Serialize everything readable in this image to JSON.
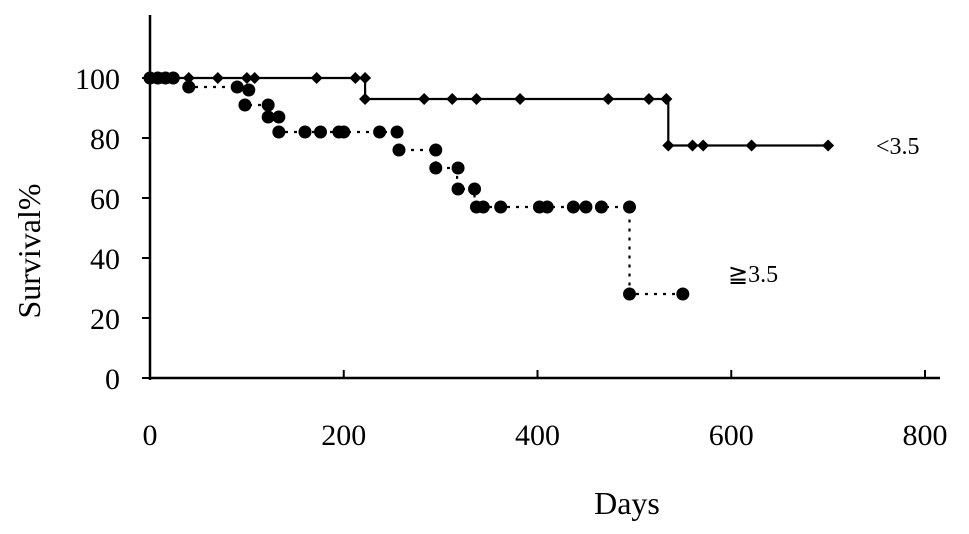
{
  "chart_data": {
    "type": "line",
    "title": "",
    "xlabel": "Days",
    "ylabel": "Survival%",
    "xlim": [
      0,
      800
    ],
    "ylim": [
      0,
      100
    ],
    "x_ticks": [
      0,
      200,
      400,
      600,
      800
    ],
    "y_ticks": [
      0,
      20,
      40,
      60,
      80,
      100
    ],
    "grid": false,
    "series": [
      {
        "name": "<3.5",
        "line_style": "solid",
        "marker": "diamond",
        "color": "#000000",
        "steps": [
          [
            0,
            100
          ],
          [
            222,
            100
          ],
          [
            222,
            93
          ],
          [
            535,
            93
          ],
          [
            535,
            77.5
          ],
          [
            700,
            77.5
          ]
        ],
        "markers": [
          [
            0,
            100
          ],
          [
            6,
            100
          ],
          [
            12,
            100
          ],
          [
            18,
            100
          ],
          [
            25,
            100
          ],
          [
            40,
            100
          ],
          [
            70,
            100
          ],
          [
            100,
            100
          ],
          [
            108,
            100
          ],
          [
            172,
            100
          ],
          [
            212,
            100
          ],
          [
            222,
            100
          ],
          [
            222,
            93
          ],
          [
            283,
            93
          ],
          [
            312,
            93
          ],
          [
            337,
            93
          ],
          [
            382,
            93
          ],
          [
            473,
            93
          ],
          [
            515,
            93
          ],
          [
            533,
            93
          ],
          [
            535,
            77.5
          ],
          [
            560,
            77.5
          ],
          [
            571,
            77.5
          ],
          [
            621,
            77.5
          ],
          [
            700,
            77.5
          ]
        ]
      },
      {
        "name": "≧3.5",
        "line_style": "dotted",
        "marker": "circle",
        "color": "#000000",
        "steps": [
          [
            0,
            100
          ],
          [
            40,
            100
          ],
          [
            40,
            97
          ],
          [
            95,
            97
          ],
          [
            95,
            96
          ],
          [
            98,
            96
          ],
          [
            98,
            91
          ],
          [
            122,
            91
          ],
          [
            122,
            87
          ],
          [
            135,
            87
          ],
          [
            135,
            82
          ],
          [
            257,
            82
          ],
          [
            257,
            76
          ],
          [
            295,
            76
          ],
          [
            295,
            70
          ],
          [
            317,
            70
          ],
          [
            317,
            63
          ],
          [
            335,
            63
          ],
          [
            335,
            57
          ],
          [
            495,
            57
          ],
          [
            495,
            28
          ],
          [
            550,
            28
          ]
        ],
        "markers": [
          [
            0,
            100
          ],
          [
            8,
            100
          ],
          [
            16,
            100
          ],
          [
            24,
            100
          ],
          [
            40,
            97
          ],
          [
            90,
            97
          ],
          [
            102,
            96
          ],
          [
            98,
            91
          ],
          [
            122,
            91
          ],
          [
            122,
            87
          ],
          [
            133,
            87
          ],
          [
            133,
            82
          ],
          [
            160,
            82
          ],
          [
            176,
            82
          ],
          [
            195,
            82
          ],
          [
            200,
            82
          ],
          [
            237,
            82
          ],
          [
            255,
            82
          ],
          [
            257,
            76
          ],
          [
            295,
            76
          ],
          [
            295,
            70
          ],
          [
            318,
            70
          ],
          [
            318,
            63
          ],
          [
            335,
            63
          ],
          [
            337,
            57
          ],
          [
            344,
            57
          ],
          [
            362,
            57
          ],
          [
            402,
            57
          ],
          [
            410,
            57
          ],
          [
            437,
            57
          ],
          [
            450,
            57
          ],
          [
            466,
            57
          ],
          [
            495,
            57
          ],
          [
            495,
            28
          ],
          [
            550,
            28
          ]
        ]
      }
    ]
  }
}
